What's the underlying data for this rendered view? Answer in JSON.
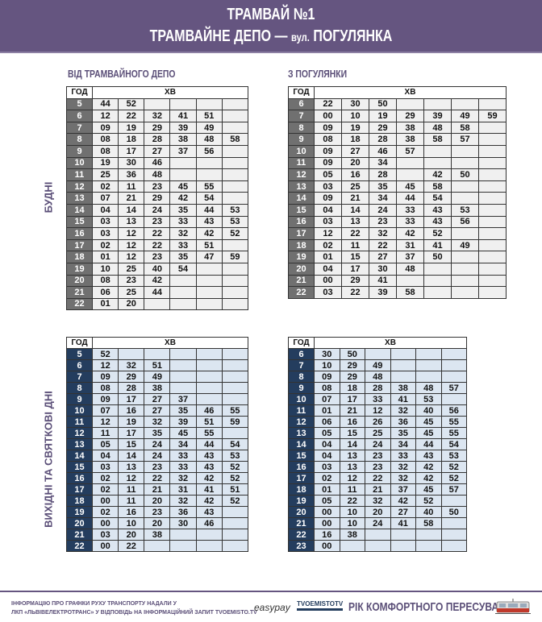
{
  "header": {
    "title": "ТРАМВАЙ №1",
    "route_from": "ТРАМВАЙНЕ ДЕПО —",
    "route_prefix": "вул.",
    "route_to": "ПОГУЛЯНКА"
  },
  "sections": {
    "from_depot": "ВІД ТРАМВАЙНОГО ДЕПО",
    "from_pohulianka": "З ПОГУЛЯНКИ",
    "weekdays": "БУДНІ",
    "weekends": "ВИХІДНІ ТА СВЯТКОВІ ДНІ"
  },
  "table_headers": {
    "hour": "ГОД",
    "minutes": "ХВ"
  },
  "colors": {
    "header": "#655580",
    "weekday_hour": "#707070",
    "weekend_hour": "#243d5e",
    "weekend_cell": "#dce6f1"
  },
  "tables": {
    "weekday_depot": {
      "cols": 6,
      "rows": [
        [
          "5",
          "44",
          "52",
          "",
          "",
          "",
          ""
        ],
        [
          "6",
          "12",
          "22",
          "32",
          "41",
          "51",
          ""
        ],
        [
          "7",
          "09",
          "19",
          "29",
          "39",
          "49",
          ""
        ],
        [
          "8",
          "08",
          "18",
          "28",
          "38",
          "48",
          "58"
        ],
        [
          "9",
          "08",
          "17",
          "27",
          "37",
          "56",
          ""
        ],
        [
          "10",
          "19",
          "30",
          "46",
          "",
          "",
          ""
        ],
        [
          "11",
          "25",
          "36",
          "48",
          "",
          "",
          ""
        ],
        [
          "12",
          "02",
          "11",
          "23",
          "45",
          "55",
          ""
        ],
        [
          "13",
          "07",
          "21",
          "29",
          "42",
          "54",
          ""
        ],
        [
          "14",
          "04",
          "14",
          "24",
          "35",
          "44",
          "53"
        ],
        [
          "15",
          "03",
          "13",
          "23",
          "33",
          "43",
          "53"
        ],
        [
          "16",
          "03",
          "12",
          "22",
          "32",
          "42",
          "52"
        ],
        [
          "17",
          "02",
          "12",
          "22",
          "33",
          "51",
          ""
        ],
        [
          "18",
          "01",
          "12",
          "23",
          "35",
          "47",
          "59"
        ],
        [
          "19",
          "10",
          "25",
          "40",
          "54",
          "",
          ""
        ],
        [
          "20",
          "08",
          "23",
          "42",
          "",
          "",
          ""
        ],
        [
          "21",
          "06",
          "25",
          "44",
          "",
          "",
          ""
        ],
        [
          "22",
          "01",
          "20",
          "",
          "",
          "",
          ""
        ]
      ]
    },
    "weekday_pohulianka": {
      "cols": 7,
      "rows": [
        [
          "6",
          "22",
          "30",
          "50",
          "",
          "",
          "",
          ""
        ],
        [
          "7",
          "00",
          "10",
          "19",
          "29",
          "39",
          "49",
          "59"
        ],
        [
          "8",
          "09",
          "19",
          "29",
          "38",
          "48",
          "58",
          ""
        ],
        [
          "9",
          "08",
          "18",
          "28",
          "38",
          "58",
          "57",
          ""
        ],
        [
          "10",
          "09",
          "27",
          "46",
          "57",
          "",
          "",
          ""
        ],
        [
          "11",
          "09",
          "20",
          "34",
          "",
          "",
          "",
          ""
        ],
        [
          "12",
          "05",
          "16",
          "28",
          "",
          "42",
          "50",
          ""
        ],
        [
          "13",
          "03",
          "25",
          "35",
          "45",
          "58",
          "",
          ""
        ],
        [
          "14",
          "09",
          "21",
          "34",
          "44",
          "54",
          "",
          ""
        ],
        [
          "15",
          "04",
          "14",
          "24",
          "33",
          "43",
          "53",
          ""
        ],
        [
          "16",
          "03",
          "13",
          "23",
          "33",
          "43",
          "56",
          ""
        ],
        [
          "17",
          "12",
          "22",
          "32",
          "42",
          "52",
          "",
          ""
        ],
        [
          "18",
          "02",
          "11",
          "22",
          "31",
          "41",
          "49",
          ""
        ],
        [
          "19",
          "01",
          "15",
          "27",
          "37",
          "50",
          "",
          ""
        ],
        [
          "20",
          "04",
          "17",
          "30",
          "48",
          "",
          "",
          ""
        ],
        [
          "21",
          "00",
          "29",
          "41",
          "",
          "",
          "",
          ""
        ],
        [
          "22",
          "03",
          "22",
          "39",
          "58",
          "",
          "",
          ""
        ]
      ]
    },
    "weekend_depot": {
      "cols": 6,
      "rows": [
        [
          "5",
          "52",
          "",
          "",
          "",
          "",
          ""
        ],
        [
          "6",
          "12",
          "32",
          "51",
          "",
          "",
          ""
        ],
        [
          "7",
          "09",
          "29",
          "49",
          "",
          "",
          ""
        ],
        [
          "8",
          "08",
          "28",
          "38",
          "",
          "",
          ""
        ],
        [
          "9",
          "09",
          "17",
          "27",
          "37",
          "",
          ""
        ],
        [
          "10",
          "07",
          "16",
          "27",
          "35",
          "46",
          "55"
        ],
        [
          "11",
          "12",
          "19",
          "32",
          "39",
          "51",
          "59"
        ],
        [
          "12",
          "11",
          "17",
          "35",
          "45",
          "55",
          ""
        ],
        [
          "13",
          "05",
          "15",
          "24",
          "34",
          "44",
          "54"
        ],
        [
          "14",
          "04",
          "14",
          "24",
          "33",
          "43",
          "53"
        ],
        [
          "15",
          "03",
          "13",
          "23",
          "33",
          "43",
          "52"
        ],
        [
          "16",
          "02",
          "12",
          "22",
          "32",
          "42",
          "52"
        ],
        [
          "17",
          "02",
          "11",
          "21",
          "31",
          "41",
          "51"
        ],
        [
          "18",
          "00",
          "11",
          "20",
          "32",
          "42",
          "52"
        ],
        [
          "19",
          "02",
          "16",
          "23",
          "36",
          "43",
          ""
        ],
        [
          "20",
          "00",
          "10",
          "20",
          "30",
          "46",
          ""
        ],
        [
          "21",
          "03",
          "20",
          "38",
          "",
          "",
          ""
        ],
        [
          "22",
          "00",
          "22",
          "",
          "",
          "",
          ""
        ]
      ]
    },
    "weekend_pohulianka": {
      "cols": 6,
      "rows": [
        [
          "6",
          "30",
          "50",
          "",
          "",
          "",
          ""
        ],
        [
          "7",
          "10",
          "29",
          "49",
          "",
          "",
          ""
        ],
        [
          "8",
          "09",
          "29",
          "48",
          "",
          "",
          ""
        ],
        [
          "9",
          "08",
          "18",
          "28",
          "38",
          "48",
          "57"
        ],
        [
          "10",
          "07",
          "17",
          "33",
          "41",
          "53",
          ""
        ],
        [
          "11",
          "01",
          "21",
          "12",
          "32",
          "40",
          "56"
        ],
        [
          "12",
          "06",
          "16",
          "26",
          "36",
          "45",
          "55"
        ],
        [
          "13",
          "05",
          "15",
          "25",
          "35",
          "45",
          "55"
        ],
        [
          "14",
          "04",
          "14",
          "24",
          "34",
          "44",
          "54"
        ],
        [
          "15",
          "04",
          "13",
          "23",
          "33",
          "43",
          "53"
        ],
        [
          "16",
          "03",
          "13",
          "23",
          "32",
          "42",
          "52"
        ],
        [
          "17",
          "02",
          "12",
          "22",
          "32",
          "42",
          "52"
        ],
        [
          "18",
          "01",
          "11",
          "21",
          "37",
          "45",
          "57"
        ],
        [
          "19",
          "05",
          "22",
          "32",
          "42",
          "52",
          ""
        ],
        [
          "20",
          "00",
          "10",
          "20",
          "27",
          "40",
          "50"
        ],
        [
          "21",
          "00",
          "10",
          "24",
          "41",
          "58",
          ""
        ],
        [
          "22",
          "16",
          "38",
          "",
          "",
          "",
          ""
        ],
        [
          "23",
          "00",
          "",
          "",
          "",
          "",
          ""
        ]
      ]
    }
  },
  "footer": {
    "note_line1": "ІНФОРМАЦІЮ ПРО ГРАФІКИ РУХУ ТРАНСПОРТУ НАДАЛИ У",
    "note_line2": "ЛКП «ЛЬВІВЕЛЕКТРОТРАНС» У ВІДПОВІДЬ НА ІНФОРМАЦІЙНИЙ ЗАПИТ TVOEMISTO.TV",
    "easypay": "easypay",
    "tvoemisto": "TVOEMISTOTV",
    "year_slogan": "РІК КОМФОРТНОГО ПЕРЕСУВАННЯ"
  }
}
